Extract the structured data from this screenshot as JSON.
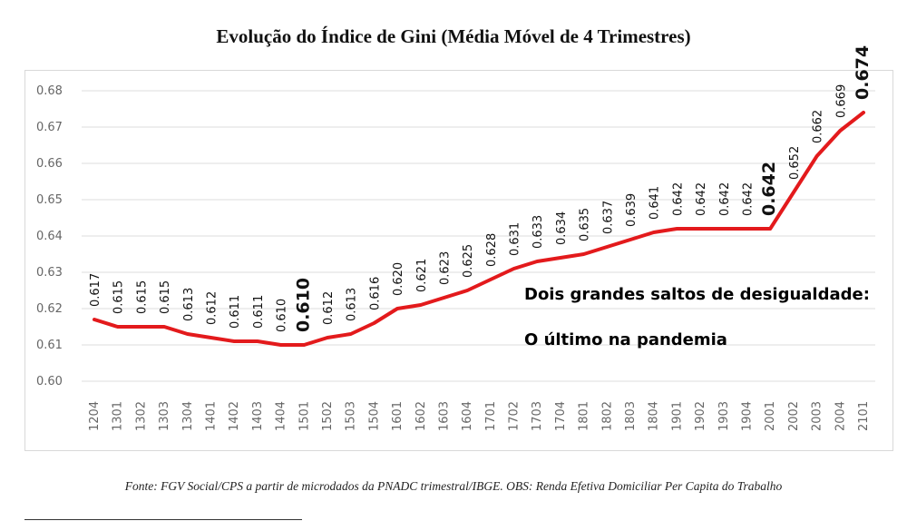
{
  "colors": {
    "line": "#e31a1c",
    "grid": "#dcdcdc",
    "tick": "#666666"
  },
  "chart_data": {
    "type": "line",
    "title": "Evolução do Índice de Gini (Média Móvel de 4 Trimestres)",
    "xlabel": "",
    "ylabel": "",
    "ylim": [
      0.6,
      0.68
    ],
    "yticks": [
      "0.60",
      "0.61",
      "0.62",
      "0.63",
      "0.64",
      "0.65",
      "0.66",
      "0.67",
      "0.68"
    ],
    "grid": true,
    "x": [
      "1204",
      "1301",
      "1302",
      "1303",
      "1304",
      "1401",
      "1402",
      "1403",
      "1404",
      "1501",
      "1502",
      "1503",
      "1504",
      "1601",
      "1602",
      "1603",
      "1604",
      "1701",
      "1702",
      "1703",
      "1704",
      "1801",
      "1802",
      "1803",
      "1804",
      "1901",
      "1902",
      "1903",
      "1904",
      "2001",
      "2002",
      "2003",
      "2004",
      "2101"
    ],
    "series": [
      {
        "values": [
          0.617,
          0.615,
          0.615,
          0.615,
          0.613,
          0.612,
          0.611,
          0.611,
          0.61,
          0.61,
          0.612,
          0.613,
          0.616,
          0.62,
          0.621,
          0.623,
          0.625,
          0.628,
          0.631,
          0.633,
          0.634,
          0.635,
          0.637,
          0.639,
          0.641,
          0.642,
          0.642,
          0.642,
          0.642,
          0.642,
          0.652,
          0.662,
          0.669,
          0.674
        ]
      }
    ],
    "labels": [
      "0.617",
      "0.615",
      "0.615",
      "0.615",
      "0.613",
      "0.612",
      "0.611",
      "0.611",
      "0.610",
      "0.610",
      "0.612",
      "0.613",
      "0.616",
      "0.620",
      "0.621",
      "0.623",
      "0.625",
      "0.628",
      "0.631",
      "0.633",
      "0.634",
      "0.635",
      "0.637",
      "0.639",
      "0.641",
      "0.642",
      "0.642",
      "0.642",
      "0.642",
      "0.642",
      "0.652",
      "0.662",
      "0.669",
      "0.674"
    ],
    "highlighted_labels": [
      "1501",
      "2001",
      "2101"
    ],
    "annotations": [
      "Dois grandes saltos de desigualdade:",
      "O último na pandemia"
    ]
  },
  "source": "Fonte: FGV Social/CPS a partir de microdados da PNADC trimestral/IBGE. OBS: Renda Efetiva Domiciliar Per Capita do Trabalho"
}
